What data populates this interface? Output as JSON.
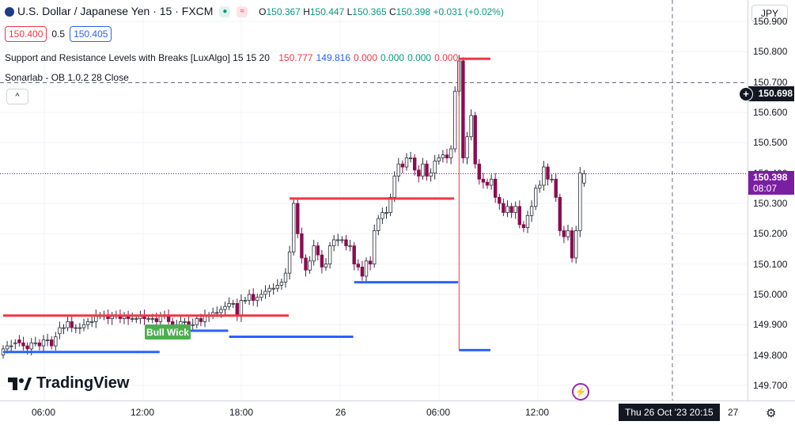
{
  "header": {
    "symbol_title": "U.S. Dollar / Japanese Yen · 15 · FXCM",
    "ohlc": {
      "o_label": "O",
      "o": "150.367",
      "h_label": "H",
      "h": "150.447",
      "l_label": "L",
      "l": "150.365",
      "c_label": "C",
      "c": "150.398",
      "change": "+0.031 (+0.02%)"
    }
  },
  "trade": {
    "sell_price": "150.400",
    "spread": "0.5",
    "buy_price": "150.405"
  },
  "indicators": [
    {
      "name": "Support and Resistance Levels with Breaks [LuxAlgo] 15 15 20",
      "values": [
        {
          "text": "150.777",
          "color": "#f23645"
        },
        {
          "text": "149.816",
          "color": "#2962ff"
        },
        {
          "text": "0.000",
          "color": "#f23645"
        },
        {
          "text": "0.000",
          "color": "#089981"
        },
        {
          "text": "0.000",
          "color": "#089981"
        },
        {
          "text": "0.000",
          "color": "#f23645"
        }
      ]
    },
    {
      "name": "Sonarlab - OB 1.0.2 28 Close",
      "values": []
    }
  ],
  "collapse_label": "^",
  "logo_text": "TradingView",
  "currency": "JPY",
  "price_axis": {
    "ticks": [
      "150.900",
      "150.800",
      "150.700",
      "150.600",
      "150.500",
      "150.400",
      "150.300",
      "150.200",
      "150.100",
      "150.000",
      "149.900",
      "149.800",
      "149.700"
    ],
    "crosshair_price": "150.698",
    "last_price": "150.398",
    "countdown": "08:07",
    "last_color": "#7b1fa2"
  },
  "time_axis": {
    "labels": [
      "06:00",
      "12:00",
      "18:00",
      "26",
      "06:00",
      "12:00",
      "27"
    ],
    "crosshair_label": "Thu 26 Oct '23   20:15"
  },
  "annotation": {
    "text": "Bull Wick",
    "color": "#4caf50"
  },
  "colors": {
    "up": "#ffffff",
    "up_border": "#2a2e39",
    "down": "#880e4f",
    "resistance": "#f23645",
    "support": "#2962ff",
    "candle_outline": "#2a2e39"
  },
  "chart_data": {
    "type": "candlestick",
    "title": "U.S. Dollar / Japanese Yen · 15 · FXCM",
    "ylim": [
      149.65,
      150.95
    ],
    "y_ticks": [
      149.7,
      149.8,
      149.9,
      150.0,
      150.1,
      150.2,
      150.3,
      150.4,
      150.5,
      150.6,
      150.7,
      150.8,
      150.9
    ],
    "closes": [
      149.82,
      149.83,
      149.83,
      149.84,
      149.84,
      149.83,
      149.82,
      149.84,
      149.84,
      149.83,
      149.85,
      149.85,
      149.83,
      149.86,
      149.89,
      149.89,
      149.91,
      149.89,
      149.89,
      149.89,
      149.9,
      149.91,
      149.91,
      149.93,
      149.93,
      149.93,
      149.92,
      149.93,
      149.93,
      149.92,
      149.93,
      149.92,
      149.92,
      149.92,
      149.93,
      149.92,
      149.92,
      149.92,
      149.91,
      149.93,
      149.93,
      149.91,
      149.9,
      149.9,
      149.91,
      149.91,
      149.9,
      149.9,
      149.92,
      149.91,
      149.93,
      149.93,
      149.94,
      149.94,
      149.95,
      149.96,
      149.97,
      149.97,
      149.93,
      149.98,
      149.98,
      150.0,
      149.98,
      149.99,
      150.0,
      150.01,
      150.02,
      150.02,
      150.03,
      150.04,
      150.07,
      150.14,
      150.3,
      150.2,
      150.12,
      150.08,
      150.11,
      150.16,
      150.13,
      150.09,
      150.1,
      150.16,
      150.18,
      150.18,
      150.18,
      150.16,
      150.16,
      150.1,
      150.09,
      150.06,
      150.11,
      150.1,
      150.21,
      150.25,
      150.27,
      150.27,
      150.32,
      150.39,
      150.43,
      150.42,
      150.45,
      150.45,
      150.41,
      150.39,
      150.43,
      150.39,
      150.4,
      150.44,
      150.45,
      150.46,
      150.45,
      150.48,
      150.67,
      150.77,
      150.45,
      150.52,
      150.59,
      150.43,
      150.38,
      150.37,
      150.36,
      150.38,
      150.32,
      150.3,
      150.27,
      150.29,
      150.27,
      150.29,
      150.23,
      150.22,
      150.26,
      150.29,
      150.35,
      150.36,
      150.42,
      150.38,
      150.38,
      150.32,
      150.21,
      150.19,
      150.21,
      150.12,
      150.21,
      150.4,
      150.398
    ],
    "opens": [
      149.8,
      149.82,
      149.83,
      149.84,
      149.85,
      149.84,
      149.83,
      149.82,
      149.84,
      149.84,
      149.83,
      149.85,
      149.85,
      149.83,
      149.87,
      149.89,
      149.89,
      149.91,
      149.89,
      149.89,
      149.89,
      149.9,
      149.91,
      149.91,
      149.93,
      149.93,
      149.93,
      149.92,
      149.93,
      149.93,
      149.92,
      149.93,
      149.92,
      149.92,
      149.92,
      149.93,
      149.92,
      149.92,
      149.92,
      149.91,
      149.93,
      149.93,
      149.91,
      149.9,
      149.9,
      149.91,
      149.91,
      149.9,
      149.9,
      149.92,
      149.91,
      149.93,
      149.93,
      149.94,
      149.94,
      149.95,
      149.96,
      149.97,
      149.97,
      149.93,
      149.98,
      149.98,
      150.0,
      149.98,
      149.99,
      150.0,
      150.01,
      150.02,
      150.02,
      150.03,
      150.04,
      150.07,
      150.14,
      150.3,
      150.2,
      150.12,
      150.08,
      150.11,
      150.16,
      150.13,
      150.09,
      150.1,
      150.16,
      150.18,
      150.18,
      150.18,
      150.16,
      150.16,
      150.1,
      150.09,
      150.06,
      150.11,
      150.1,
      150.21,
      150.25,
      150.27,
      150.27,
      150.32,
      150.39,
      150.43,
      150.42,
      150.45,
      150.45,
      150.41,
      150.39,
      150.43,
      150.39,
      150.4,
      150.44,
      150.45,
      150.46,
      150.45,
      150.48,
      150.67,
      150.77,
      150.45,
      150.52,
      150.59,
      150.43,
      150.38,
      150.37,
      150.36,
      150.38,
      150.32,
      150.3,
      150.27,
      150.29,
      150.27,
      150.29,
      150.23,
      150.22,
      150.26,
      150.29,
      150.35,
      150.36,
      150.42,
      150.38,
      150.38,
      150.32,
      150.21,
      150.19,
      150.21,
      150.12,
      150.21,
      150.367
    ],
    "levels": [
      {
        "type": "resistance",
        "price": 150.777,
        "from_bar": 113,
        "to_bar": 120
      },
      {
        "type": "resistance",
        "price": 150.316,
        "from_bar": 71,
        "to_bar": 111
      },
      {
        "type": "resistance",
        "price": 149.93,
        "from_bar": 0,
        "to_bar": 70
      },
      {
        "type": "support",
        "price": 150.04,
        "from_bar": 87,
        "to_bar": 112
      },
      {
        "type": "support",
        "price": 149.816,
        "from_bar": 113,
        "to_bar": 120
      },
      {
        "type": "support",
        "price": 149.88,
        "from_bar": 40,
        "to_bar": 55
      },
      {
        "type": "support",
        "price": 149.86,
        "from_bar": 56,
        "to_bar": 86
      },
      {
        "type": "support",
        "price": 149.81,
        "from_bar": 0,
        "to_bar": 38
      }
    ]
  }
}
